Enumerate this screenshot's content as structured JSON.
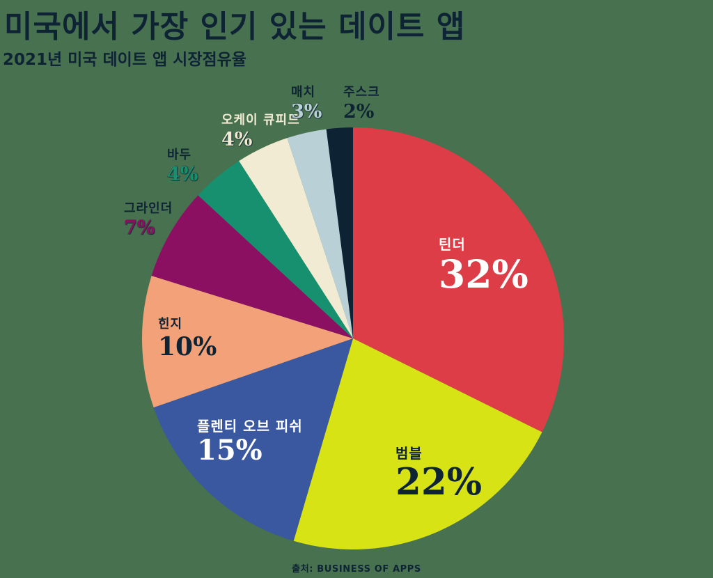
{
  "title": "미국에서 가장 인기 있는 데이트 앱",
  "subtitle": "2021년 미국 데이트 앱 시장점유율",
  "source": "출처: BUSINESS OF APPS",
  "colors": {
    "background": "#48714F",
    "text_navy": "#0E2435"
  },
  "chart_data": {
    "type": "pie",
    "title": "미국에서 가장 인기 있는 데이트 앱",
    "subtitle": "2021년 미국 데이트 앱 시장점유율",
    "unit": "%",
    "start_angle_deg": 0,
    "direction": "clockwise",
    "legend_position": "none",
    "series": [
      {
        "key": "tinder",
        "label": "틴더",
        "value": 32,
        "value_label": "32%",
        "color": "#DC3D46",
        "label_placement": "inside",
        "label_color": "#FFFFFF",
        "value_color": "#FFFFFF"
      },
      {
        "key": "bumble",
        "label": "범블",
        "value": 22,
        "value_label": "22%",
        "color": "#D7E314",
        "label_placement": "inside",
        "label_color": "#0E2435",
        "value_color": "#0E2435"
      },
      {
        "key": "plenty-of-fish",
        "label": "플렌티 오브 피쉬",
        "value": 15,
        "value_label": "15%",
        "color": "#3A58A0",
        "label_placement": "inside",
        "label_color": "#FFFFFF",
        "value_color": "#FFFFFF"
      },
      {
        "key": "hinge",
        "label": "힌지",
        "value": 10,
        "value_label": "10%",
        "color": "#F2A178",
        "label_placement": "inside",
        "label_color": "#0E2435",
        "value_color": "#0E2435"
      },
      {
        "key": "grindr",
        "label": "그라인더",
        "value": 7,
        "value_label": "7%",
        "color": "#8C1062",
        "label_placement": "outside",
        "label_color": "#0E2435",
        "value_color": "#8C1062"
      },
      {
        "key": "badoo",
        "label": "바두",
        "value": 4,
        "value_label": "4%",
        "color": "#16906F",
        "label_placement": "outside",
        "label_color": "#0E2435",
        "value_color": "#16906F"
      },
      {
        "key": "okcupid",
        "label": "오케이 큐피드",
        "value": 4,
        "value_label": "4%",
        "color": "#F0EBD2",
        "label_placement": "outside",
        "label_color": "#F0EBD2",
        "value_color": "#F0EBD2"
      },
      {
        "key": "match",
        "label": "매치",
        "value": 3,
        "value_label": "3%",
        "color": "#B9D1D6",
        "label_placement": "outside",
        "label_color": "#0E2435",
        "value_color": "#B9D1D6"
      },
      {
        "key": "zoosk",
        "label": "주스크",
        "value": 2,
        "value_label": "2%",
        "color": "#0D2233",
        "label_placement": "outside",
        "label_color": "#0E2435",
        "value_color": "#0E2435"
      }
    ]
  }
}
